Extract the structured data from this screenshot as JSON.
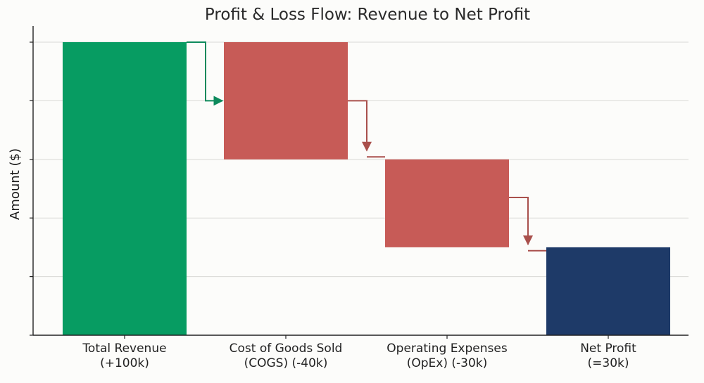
{
  "chart_data": {
    "type": "bar",
    "subtype": "waterfall",
    "title": "Profit & Loss Flow: Revenue to Net Profit",
    "xlabel": "",
    "ylabel": "Amount ($)",
    "ylim": [
      -5,
      100
    ],
    "grid": true,
    "ytick_values": [
      0,
      20,
      40,
      60,
      80,
      100
    ],
    "categories": [
      [
        "Total Revenue",
        "(+100k)"
      ],
      [
        "Cost of Goods Sold",
        "(COGS) (-40k)"
      ],
      [
        "Operating Expenses",
        "(OpEx) (-30k)"
      ],
      [
        "Net Profit",
        "(=30k)"
      ]
    ],
    "bars": [
      {
        "start": 0,
        "end": 100,
        "kind": "increase"
      },
      {
        "start": 100,
        "end": 60,
        "kind": "decrease"
      },
      {
        "start": 60,
        "end": 30,
        "kind": "decrease"
      },
      {
        "start": 0,
        "end": 30,
        "kind": "total"
      }
    ],
    "connectors": [
      {
        "from": 0,
        "to": 1,
        "level": 100,
        "target_level": 80,
        "kind": "increase"
      },
      {
        "from": 1,
        "to": 2,
        "level": 80,
        "target_level": 63,
        "kind": "decrease"
      },
      {
        "from": 2,
        "to": 3,
        "level": 47,
        "target_level": 31,
        "kind": "decrease"
      }
    ],
    "colors": {
      "increase": "#079c62",
      "decrease": "#c75b57",
      "total": "#1e3a68",
      "connector_increase": "#0d8a5c",
      "connector_decrease": "#a9504c"
    }
  }
}
